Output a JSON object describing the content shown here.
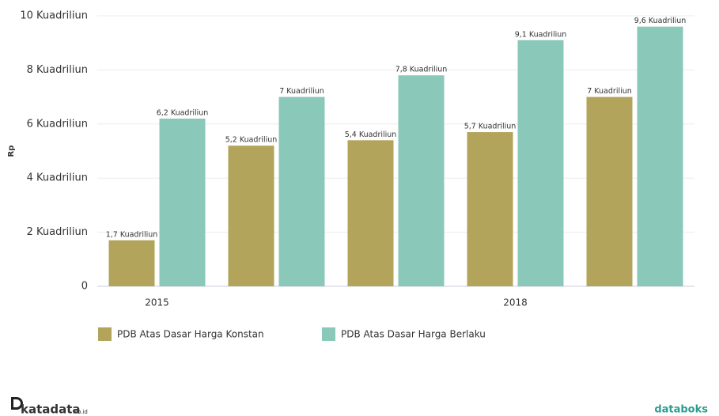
{
  "chart_data": {
    "type": "bar",
    "y_label": "Rp",
    "categories": [
      "2015",
      null,
      null,
      "2018",
      null
    ],
    "series": [
      {
        "name": "PDB Atas Dasar Harga Konstan",
        "color": "#b2a45b",
        "values": [
          1.7,
          5.2,
          5.4,
          5.7,
          7
        ],
        "value_labels": [
          "1,7 Kuadriliun",
          "5,2 Kuadriliun",
          "5,4 Kuadriliun",
          "5,7 Kuadriliun",
          "7 Kuadriliun"
        ]
      },
      {
        "name": "PDB Atas Dasar Harga Berlaku",
        "color": "#8ac8ba",
        "values": [
          6.2,
          7,
          7.8,
          9.1,
          9.6
        ],
        "value_labels": [
          "6,2 Kuadriliun",
          "7 Kuadriliun",
          "7,8 Kuadriliun",
          "9,1 Kuadriliun",
          "9,6 Kuadriliun"
        ]
      }
    ],
    "ylim": [
      0,
      10
    ],
    "yticks": [
      0,
      {
        "value": 2,
        "label": "2 Kuadriliun"
      },
      {
        "value": 4,
        "label": "4 Kuadriliun"
      },
      {
        "value": 6,
        "label": "6 Kuadriliun"
      },
      {
        "value": 8,
        "label": "8 Kuadriliun"
      },
      {
        "value": 10,
        "label": "10 Kuadriliun"
      }
    ],
    "grid": true
  },
  "logos": {
    "left": "katadata",
    "left_suffix": ".co.id",
    "right": "databoks"
  }
}
